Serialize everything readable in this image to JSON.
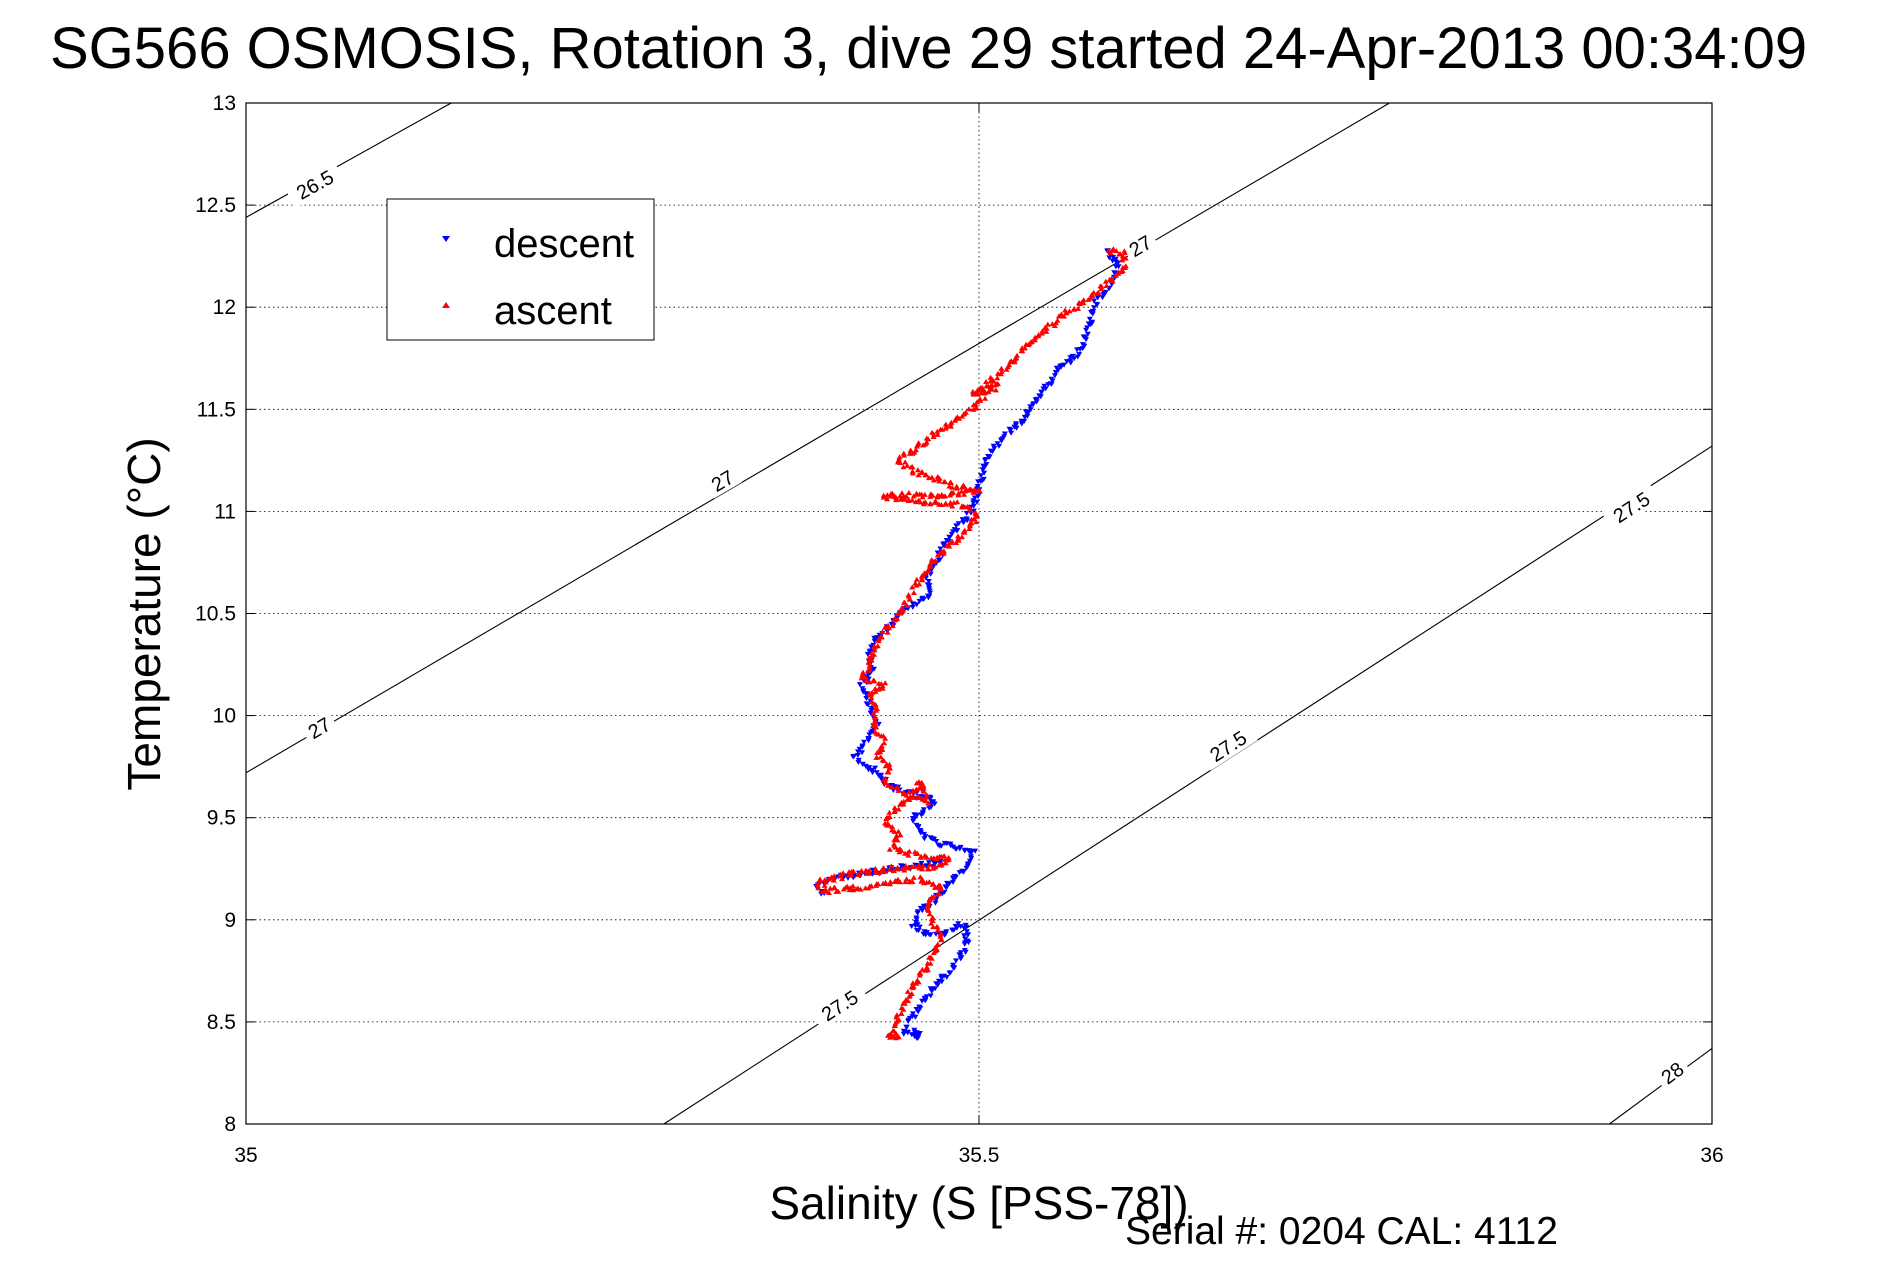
{
  "chart_data": {
    "type": "scatter",
    "title": "SG566 OSMOSIS, Rotation 3, dive 29 started 24-Apr-2013 00:34:09",
    "xlabel": "Salinity (S [PSS-78])",
    "ylabel": "Temperature (°C)",
    "xlim": [
      35,
      36
    ],
    "ylim": [
      8,
      13
    ],
    "xticks": [
      35,
      35.5,
      36
    ],
    "xtick_labels": [
      "35",
      "35.5",
      "36"
    ],
    "yticks": [
      8,
      8.5,
      9,
      9.5,
      10,
      10.5,
      11,
      11.5,
      12,
      12.5,
      13
    ],
    "ytick_labels": [
      "8",
      "8.5",
      "9",
      "9.5",
      "10",
      "10.5",
      "11",
      "11.5",
      "12",
      "12.5",
      "13"
    ],
    "grid": true,
    "legend_position": "top-left",
    "series": [
      {
        "name": "descent",
        "color": "#0000ff",
        "marker": "triangle-down",
        "path": [
          [
            35.588,
            12.28
          ],
          [
            35.595,
            12.2
          ],
          [
            35.59,
            12.1
          ],
          [
            35.58,
            12.03
          ],
          [
            35.575,
            11.92
          ],
          [
            35.572,
            11.82
          ],
          [
            35.565,
            11.75
          ],
          [
            35.555,
            11.7
          ],
          [
            35.548,
            11.62
          ],
          [
            35.535,
            11.52
          ],
          [
            35.53,
            11.45
          ],
          [
            35.515,
            11.35
          ],
          [
            35.505,
            11.25
          ],
          [
            35.5,
            11.12
          ],
          [
            35.495,
            11.0
          ],
          [
            35.485,
            10.92
          ],
          [
            35.478,
            10.85
          ],
          [
            35.47,
            10.75
          ],
          [
            35.465,
            10.68
          ],
          [
            35.468,
            10.6
          ],
          [
            35.45,
            10.52
          ],
          [
            35.44,
            10.45
          ],
          [
            35.43,
            10.38
          ],
          [
            35.425,
            10.3
          ],
          [
            35.428,
            10.22
          ],
          [
            35.42,
            10.15
          ],
          [
            35.425,
            10.05
          ],
          [
            35.43,
            9.95
          ],
          [
            35.425,
            9.88
          ],
          [
            35.415,
            9.8
          ],
          [
            35.43,
            9.72
          ],
          [
            35.44,
            9.65
          ],
          [
            35.47,
            9.58
          ],
          [
            35.455,
            9.5
          ],
          [
            35.46,
            9.42
          ],
          [
            35.475,
            9.37
          ],
          [
            35.497,
            9.33
          ],
          [
            35.49,
            9.25
          ],
          [
            35.48,
            9.18
          ],
          [
            35.47,
            9.1
          ],
          [
            35.46,
            9.05
          ],
          [
            35.455,
            8.97
          ],
          [
            35.47,
            8.92
          ],
          [
            35.49,
            8.98
          ],
          [
            35.492,
            8.9
          ],
          [
            35.488,
            8.82
          ],
          [
            35.48,
            8.75
          ],
          [
            35.47,
            8.68
          ],
          [
            35.462,
            8.6
          ],
          [
            35.455,
            8.52
          ],
          [
            35.448,
            8.45
          ],
          [
            35.46,
            8.42
          ],
          [
            35.455,
            8.47
          ]
        ],
        "extra_paths": [
          [
            [
              35.475,
              9.28
            ],
            [
              35.44,
              9.25
            ],
            [
              35.4,
              9.2
            ],
            [
              35.39,
              9.16
            ],
            [
              35.395,
              9.12
            ]
          ]
        ]
      },
      {
        "name": "ascent",
        "color": "#ff0000",
        "marker": "triangle-up",
        "path": [
          [
            35.588,
            12.28
          ],
          [
            35.6,
            12.26
          ],
          [
            35.598,
            12.18
          ],
          [
            35.585,
            12.1
          ],
          [
            35.57,
            12.02
          ],
          [
            35.555,
            11.95
          ],
          [
            35.545,
            11.88
          ],
          [
            35.535,
            11.82
          ],
          [
            35.525,
            11.75
          ],
          [
            35.515,
            11.68
          ],
          [
            35.505,
            11.62
          ],
          [
            35.495,
            11.57
          ],
          [
            35.512,
            11.62
          ],
          [
            35.498,
            11.52
          ],
          [
            35.485,
            11.45
          ],
          [
            35.47,
            11.38
          ],
          [
            35.455,
            11.3
          ],
          [
            35.445,
            11.25
          ],
          [
            35.455,
            11.2
          ],
          [
            35.48,
            11.13
          ],
          [
            35.5,
            11.1
          ],
          [
            35.47,
            11.08
          ],
          [
            35.44,
            11.08
          ],
          [
            35.435,
            11.07
          ],
          [
            35.455,
            11.05
          ],
          [
            35.49,
            11.03
          ],
          [
            35.5,
            10.98
          ],
          [
            35.49,
            10.9
          ],
          [
            35.478,
            10.82
          ],
          [
            35.465,
            10.72
          ],
          [
            35.455,
            10.62
          ],
          [
            35.448,
            10.52
          ],
          [
            35.44,
            10.45
          ],
          [
            35.43,
            10.35
          ],
          [
            35.425,
            10.25
          ],
          [
            35.42,
            10.18
          ],
          [
            35.435,
            10.15
          ],
          [
            35.425,
            10.1
          ],
          [
            35.43,
            10.02
          ],
          [
            35.428,
            9.95
          ],
          [
            35.435,
            9.88
          ],
          [
            35.43,
            9.8
          ],
          [
            35.44,
            9.75
          ],
          [
            35.435,
            9.68
          ],
          [
            35.45,
            9.62
          ],
          [
            35.465,
            9.58
          ],
          [
            35.46,
            9.68
          ],
          [
            35.455,
            9.6
          ],
          [
            35.445,
            9.55
          ],
          [
            35.435,
            9.48
          ],
          [
            35.445,
            9.42
          ],
          [
            35.44,
            9.35
          ],
          [
            35.455,
            9.32
          ],
          [
            35.48,
            9.3
          ],
          [
            35.47,
            9.26
          ],
          [
            35.44,
            9.25
          ],
          [
            35.41,
            9.22
          ],
          [
            35.39,
            9.18
          ],
          [
            35.395,
            9.14
          ],
          [
            35.42,
            9.16
          ],
          [
            35.44,
            9.18
          ],
          [
            35.46,
            9.2
          ],
          [
            35.475,
            9.15
          ],
          [
            35.465,
            9.08
          ],
          [
            35.468,
            8.98
          ],
          [
            35.475,
            8.92
          ],
          [
            35.47,
            8.85
          ],
          [
            35.465,
            8.78
          ],
          [
            35.458,
            8.7
          ],
          [
            35.45,
            8.6
          ],
          [
            35.445,
            8.52
          ],
          [
            35.44,
            8.45
          ],
          [
            35.445,
            8.42
          ],
          [
            35.435,
            8.44
          ]
        ]
      }
    ],
    "contours": [
      {
        "label": "26.5",
        "points": [
          [
            35.0,
            12.44
          ],
          [
            35.14,
            13.0
          ]
        ],
        "label_at": [
          35.047,
          12.6
        ]
      },
      {
        "label": "27",
        "points": [
          [
            35.0,
            9.72
          ],
          [
            35.78,
            13.0
          ]
        ],
        "label_at": [
          35.05,
          9.94
        ]
      },
      {
        "label": "27",
        "label_at": [
          35.325,
          11.15
        ]
      },
      {
        "label": "27",
        "label_at": [
          35.61,
          12.3
        ]
      },
      {
        "label": "27.5",
        "points": [
          [
            35.285,
            8.0
          ],
          [
            36.0,
            11.32
          ]
        ],
        "label_at": [
          35.405,
          8.58
        ]
      },
      {
        "label": "27.5",
        "label_at": [
          35.67,
          9.85
        ]
      },
      {
        "label": "27.5",
        "label_at": [
          35.945,
          11.02
        ]
      },
      {
        "label": "28",
        "points": [
          [
            35.93,
            8.0
          ],
          [
            36.0,
            8.37
          ]
        ],
        "label_at": [
          35.973,
          8.25
        ]
      }
    ]
  },
  "legend": {
    "items": [
      {
        "label": "descent",
        "color": "#0000ff",
        "marker": "triangle-down"
      },
      {
        "label": "ascent",
        "color": "#ff0000",
        "marker": "triangle-up"
      }
    ]
  },
  "footer": {
    "serial": "Serial #: 0204  CAL: 4112"
  }
}
